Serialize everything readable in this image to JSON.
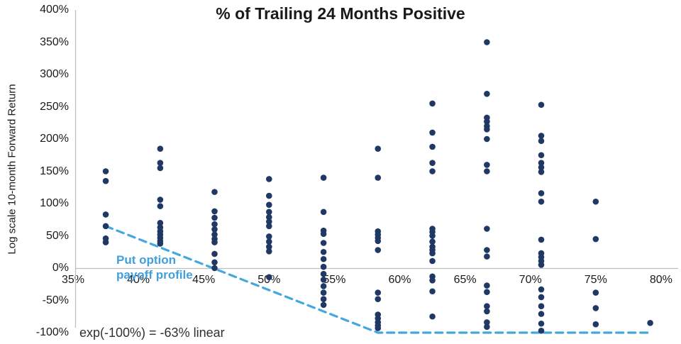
{
  "title": "% of Trailing 24 Months Positive",
  "y_axis": {
    "label": "Log scale 10-month Forward Return",
    "ticks": [
      "400%",
      "350%",
      "300%",
      "250%",
      "200%",
      "150%",
      "100%",
      "50%",
      "0%",
      "-50%",
      "-100%"
    ]
  },
  "x_axis": {
    "ticks": [
      "35%",
      "40%",
      "45%",
      "50%",
      "55%",
      "60%",
      "65%",
      "70%",
      "75%",
      "80%"
    ]
  },
  "annotations": {
    "payoff_line_1": "Put option",
    "payoff_line_2": "payoff profile",
    "footnote": "exp(-100%) = -63% linear"
  },
  "colors": {
    "dot": "#1f3864",
    "payoff_line": "#45a7de",
    "axis_line": "#bfbfbf",
    "annotation_blue": "#41a0dc",
    "text": "#1a1a1a"
  },
  "chart_data": {
    "type": "scatter",
    "title": "% of Trailing 24 Months Positive",
    "xlabel": "% of trailing 24 months positive",
    "ylabel": "Log scale 10-month Forward Return (%)",
    "xlim": [
      35,
      80
    ],
    "ylim": [
      -100,
      400
    ],
    "x_tick_values": [
      35,
      40,
      45,
      50,
      55,
      60,
      65,
      70,
      75,
      80
    ],
    "y_tick_values": [
      400,
      350,
      300,
      250,
      200,
      150,
      100,
      50,
      0,
      -50,
      -100
    ],
    "grid": "zero-line-only",
    "series": [
      {
        "x": 37.5,
        "y": [
          150,
          135,
          83,
          65,
          46,
          40
        ]
      },
      {
        "x": 41.67,
        "y": [
          185,
          163,
          155,
          106,
          96,
          70,
          63,
          57,
          52,
          47,
          42,
          38
        ]
      },
      {
        "x": 45.83,
        "y": [
          118,
          88,
          78,
          68,
          60,
          52,
          45,
          40,
          22,
          9,
          0
        ]
      },
      {
        "x": 50.0,
        "y": [
          138,
          112,
          98,
          87,
          79,
          72,
          65,
          49,
          41,
          33,
          26,
          -14
        ]
      },
      {
        "x": 54.17,
        "y": [
          140,
          87,
          58,
          53,
          39,
          25,
          14,
          2,
          -9,
          -18,
          -28,
          -38,
          -48,
          -57
        ]
      },
      {
        "x": 58.33,
        "y": [
          185,
          140,
          57,
          52,
          47,
          42,
          28,
          -38,
          -48,
          -72,
          -78,
          -84,
          -89,
          -93
        ]
      },
      {
        "x": 62.5,
        "y": [
          255,
          210,
          188,
          163,
          150,
          61,
          56,
          50,
          41,
          33,
          28,
          23,
          11,
          -13,
          -19,
          -36,
          -75
        ]
      },
      {
        "x": 66.67,
        "y": [
          350,
          270,
          233,
          227,
          220,
          215,
          200,
          160,
          150,
          61,
          28,
          18,
          -27,
          -37,
          -59,
          -67,
          -84,
          -91
        ]
      },
      {
        "x": 70.83,
        "y": [
          253,
          205,
          197,
          175,
          163,
          156,
          149,
          116,
          103,
          44,
          23,
          17,
          11,
          5,
          -33,
          -45,
          -59,
          -71,
          -86,
          -97
        ]
      },
      {
        "x": 75.0,
        "y": [
          103,
          45,
          -38,
          -62,
          -87
        ]
      },
      {
        "x": 79.17,
        "y": [
          -85
        ]
      }
    ],
    "payoff_line": {
      "label": "Put option payoff profile",
      "style": "dashed",
      "points": [
        [
          37.5,
          65
        ],
        [
          58.33,
          -100
        ],
        [
          79.0,
          -100
        ]
      ]
    },
    "footnote": "exp(-100%) = -63% linear",
    "legend_position": "none"
  }
}
